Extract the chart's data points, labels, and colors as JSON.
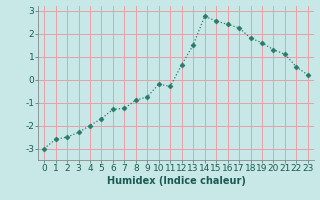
{
  "x": [
    0,
    1,
    2,
    3,
    4,
    5,
    6,
    7,
    8,
    9,
    10,
    11,
    12,
    13,
    14,
    15,
    16,
    17,
    18,
    19,
    20,
    21,
    22,
    23
  ],
  "y": [
    -3.0,
    -2.6,
    -2.5,
    -2.3,
    -2.0,
    -1.7,
    -1.3,
    -1.25,
    -0.9,
    -0.75,
    -0.2,
    -0.3,
    0.65,
    1.5,
    2.75,
    2.55,
    2.4,
    2.25,
    1.8,
    1.6,
    1.3,
    1.1,
    0.55,
    0.2
  ],
  "line_color": "#2a7a6a",
  "marker": "D",
  "marker_size": 2.5,
  "background_color": "#c8e8e8",
  "plot_bg_color": "#c8e8e8",
  "grid_color": "#e8a0a8",
  "xlabel": "Humidex (Indice chaleur)",
  "xlabel_fontsize": 7,
  "tick_fontsize": 6.5,
  "ylim": [
    -3.5,
    3.2
  ],
  "xlim": [
    -0.5,
    23.5
  ],
  "yticks": [
    -3,
    -2,
    -1,
    0,
    1,
    2,
    3
  ],
  "xticks": [
    0,
    1,
    2,
    3,
    4,
    5,
    6,
    7,
    8,
    9,
    10,
    11,
    12,
    13,
    14,
    15,
    16,
    17,
    18,
    19,
    20,
    21,
    22,
    23
  ]
}
